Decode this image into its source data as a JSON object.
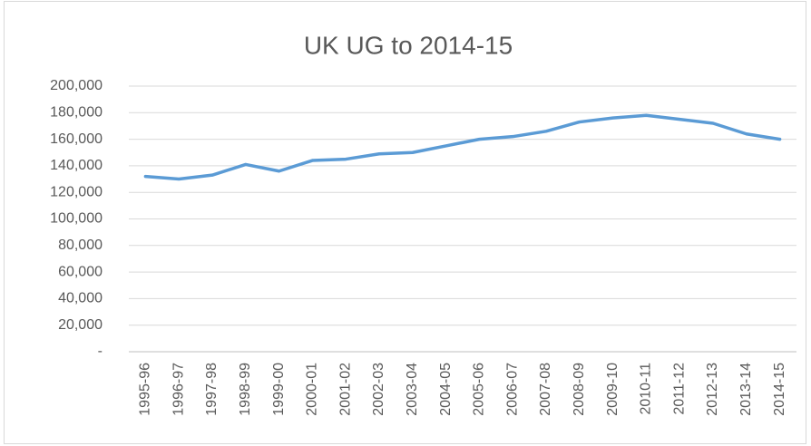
{
  "chart_data": {
    "type": "line",
    "title": "UK UG to 2014-15",
    "categories": [
      "1995-96",
      "1996-97",
      "1997-98",
      "1998-99",
      "1999-00",
      "2000-01",
      "2001-02",
      "2002-03",
      "2003-04",
      "2004-05",
      "2005-06",
      "2006-07",
      "2007-08",
      "2008-09",
      "2009-10",
      "2010-11",
      "2011-12",
      "2012-13",
      "2013-14",
      "2014-15"
    ],
    "series": [
      {
        "name": "UK UG",
        "color": "#5b9bd5",
        "values": [
          132000,
          130000,
          133000,
          141000,
          136000,
          144000,
          145000,
          149000,
          150000,
          155000,
          160000,
          162000,
          166000,
          173000,
          176000,
          178000,
          175000,
          172000,
          164000,
          160000
        ]
      }
    ],
    "ylim": [
      0,
      200000
    ],
    "yticks": [
      {
        "value": 0,
        "label": "-"
      },
      {
        "value": 20000,
        "label": "20,000"
      },
      {
        "value": 40000,
        "label": "40,000"
      },
      {
        "value": 60000,
        "label": "60,000"
      },
      {
        "value": 80000,
        "label": "80,000"
      },
      {
        "value": 100000,
        "label": "100,000"
      },
      {
        "value": 120000,
        "label": "120,000"
      },
      {
        "value": 140000,
        "label": "140,000"
      },
      {
        "value": 160000,
        "label": "160,000"
      },
      {
        "value": 180000,
        "label": "180,000"
      },
      {
        "value": 200000,
        "label": "200,000"
      }
    ],
    "grid": true
  }
}
